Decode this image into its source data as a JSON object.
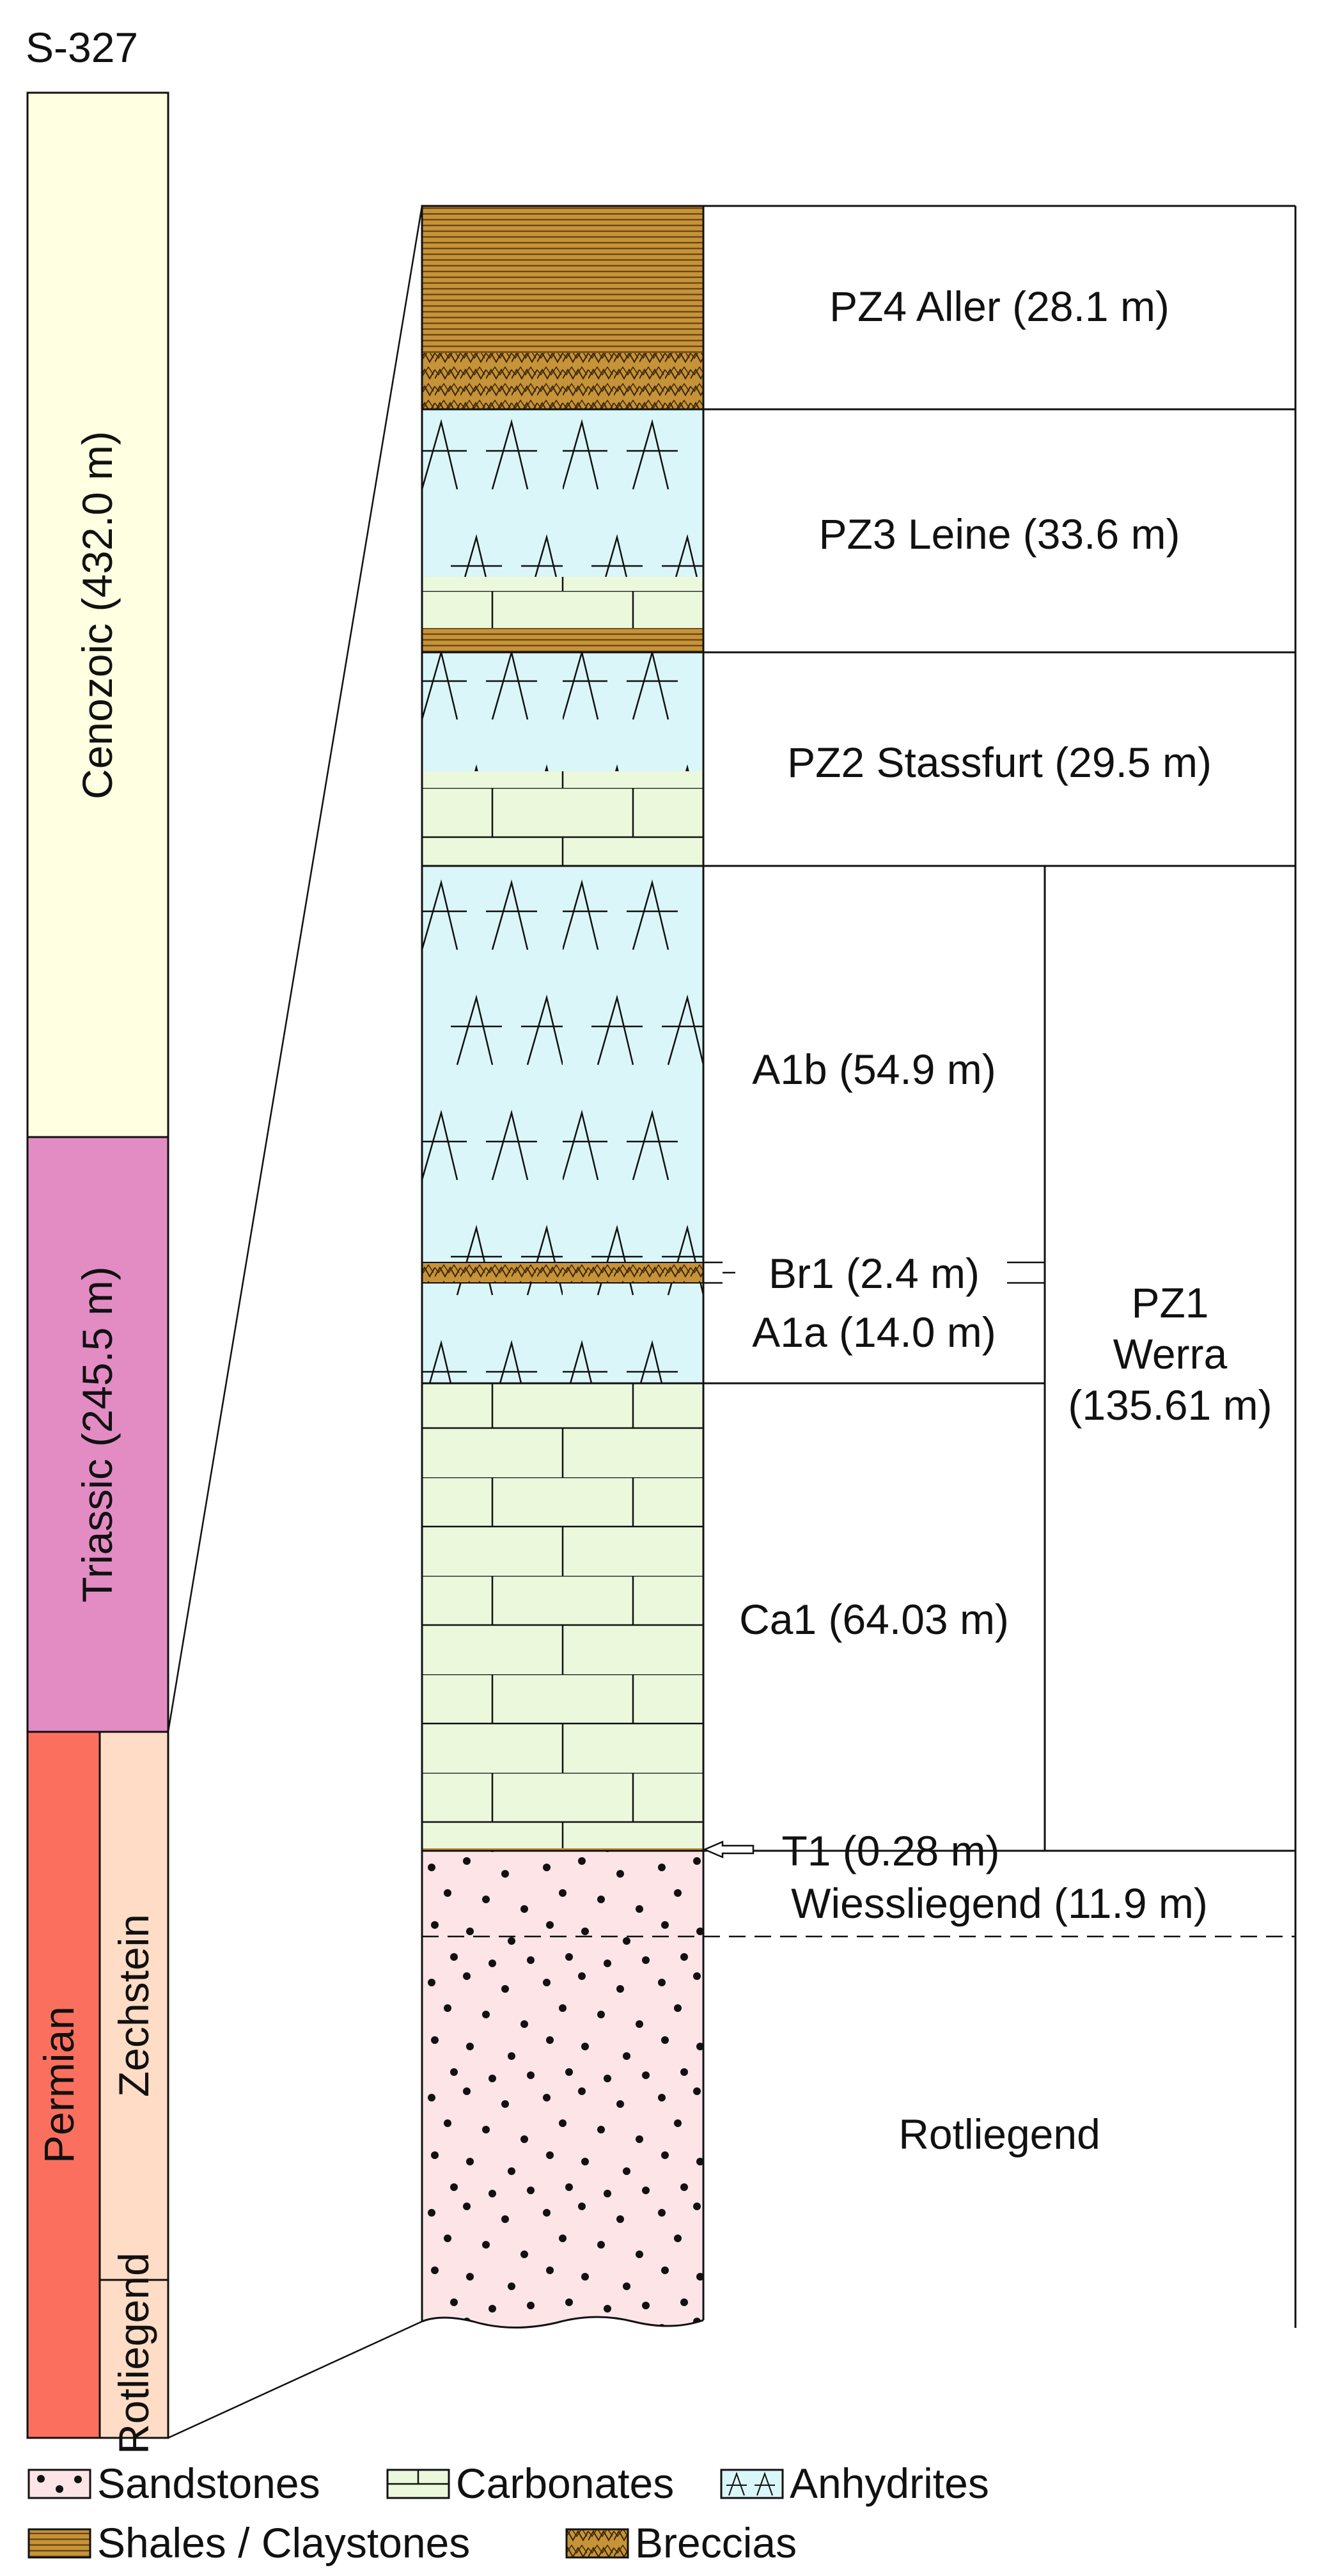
{
  "well_id": "S-327",
  "colors": {
    "cenozoic": "#FFFFE1",
    "triassic": "#E38CC4",
    "permian": "#FB6F5E",
    "zechstein": "#FEDCC5",
    "rotliegend": "#FEDCC5",
    "anhydrite": "#DAF6F8",
    "carbonate": "#EBF8DC",
    "sandstone": "#FDE4E6",
    "shale": "#C79338",
    "breccia": "#C79338",
    "line": "#111111"
  },
  "stratigraphic_column": {
    "units": [
      {
        "id": "cenozoic",
        "label": "Cenozoic (432.0 m)"
      },
      {
        "id": "triassic",
        "label": "Triassic (245.5 m)"
      },
      {
        "id": "permian",
        "label": "Permian"
      }
    ],
    "permian_subunits": [
      {
        "id": "zechstein",
        "label": "Zechstein"
      },
      {
        "id": "rotliegend",
        "label": "Rotliegend"
      }
    ]
  },
  "formations": [
    {
      "id": "pz4",
      "label": "PZ4 Aller (28.1 m)",
      "lithology": [
        "shale",
        "breccia"
      ]
    },
    {
      "id": "pz3",
      "label": "PZ3 Leine (33.6 m)",
      "lithology": [
        "anhydrite",
        "carbonate",
        "shale"
      ]
    },
    {
      "id": "pz2",
      "label": "PZ2 Stassfurt (29.5 m)",
      "lithology": [
        "anhydrite",
        "carbonate"
      ]
    },
    {
      "id": "a1b",
      "label": "A1b (54.9 m)",
      "lithology": [
        "anhydrite"
      ]
    },
    {
      "id": "br1",
      "label": "Br1 (2.4 m)",
      "lithology": [
        "breccia"
      ]
    },
    {
      "id": "a1a",
      "label": "A1a (14.0 m)",
      "lithology": [
        "anhydrite"
      ]
    },
    {
      "id": "ca1",
      "label": "Ca1 (64.03 m)",
      "lithology": [
        "carbonate"
      ]
    },
    {
      "id": "t1",
      "label": "T1 (0.28 m)",
      "lithology": [
        "shale"
      ]
    },
    {
      "id": "wiessliegend",
      "label": "Wiessliegend (11.9 m)",
      "lithology": [
        "sandstone"
      ]
    },
    {
      "id": "rotliegend",
      "label": "Rotliegend",
      "lithology": [
        "sandstone"
      ]
    }
  ],
  "group": {
    "id": "pz1",
    "lines": [
      "PZ1",
      "Werra",
      "(135.61 m)"
    ]
  },
  "legend": [
    {
      "id": "sandstones",
      "label": "Sandstones",
      "icon": "sandstone-swatch"
    },
    {
      "id": "carbonates",
      "label": "Carbonates",
      "icon": "carbonate-swatch"
    },
    {
      "id": "anhydrites",
      "label": "Anhydrites",
      "icon": "anhydrite-swatch"
    },
    {
      "id": "shales",
      "label": "Shales / Claystones",
      "icon": "shale-swatch"
    },
    {
      "id": "breccias",
      "label": "Breccias",
      "icon": "breccia-swatch"
    }
  ]
}
